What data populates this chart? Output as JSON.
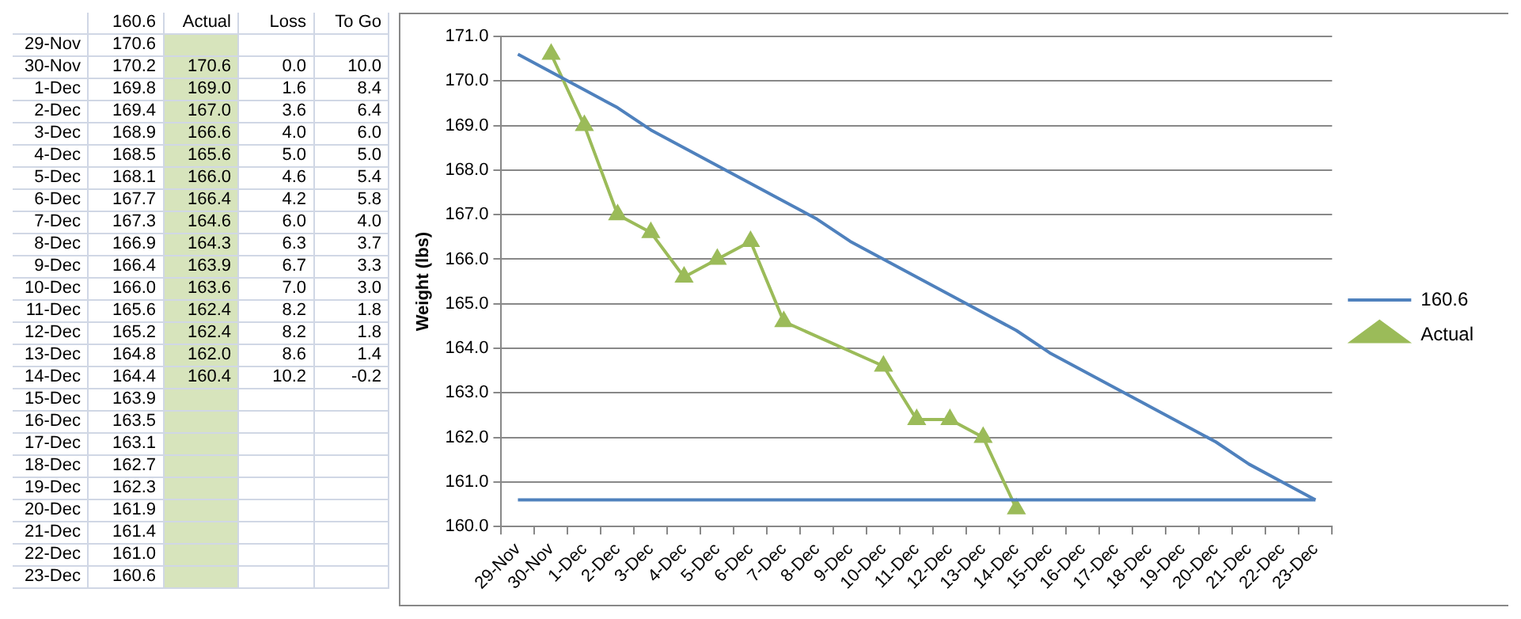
{
  "chart_data": [
    {
      "type": "other",
      "categories": [
        "29-Nov",
        "30-Nov",
        "1-Dec",
        "2-Dec",
        "3-Dec",
        "4-Dec",
        "5-Dec",
        "6-Dec",
        "7-Dec",
        "8-Dec",
        "9-Dec",
        "10-Dec",
        "11-Dec",
        "12-Dec",
        "13-Dec",
        "14-Dec",
        "15-Dec",
        "16-Dec",
        "17-Dec",
        "18-Dec",
        "19-Dec",
        "20-Dec",
        "21-Dec",
        "22-Dec",
        "23-Dec"
      ],
      "series": [
        {
          "name": "160.6",
          "values": [
            170.6,
            170.2,
            169.8,
            169.4,
            168.9,
            168.5,
            168.1,
            167.7,
            167.3,
            166.9,
            166.4,
            166.0,
            165.6,
            165.2,
            164.8,
            164.4,
            163.9,
            163.5,
            163.1,
            162.7,
            162.3,
            161.9,
            161.4,
            161.0,
            160.6
          ],
          "value_labels": [
            "170.6",
            "170.2",
            "169.8",
            "169.4",
            "168.9",
            "168.5",
            "168.1",
            "167.7",
            "167.3",
            "166.9",
            "166.4",
            "166.0",
            "165.6",
            "165.2",
            "164.8",
            "164.4",
            "163.9",
            "163.5",
            "163.1",
            "162.7",
            "162.3",
            "161.9",
            "161.4",
            "161.0",
            "160.6"
          ]
        },
        {
          "name": "Actual",
          "color": "#d7e4bc",
          "values": [
            null,
            170.6,
            169.0,
            167.0,
            166.6,
            165.6,
            166.0,
            166.4,
            164.6,
            164.3,
            163.9,
            163.6,
            162.4,
            162.4,
            162.0,
            160.4,
            null,
            null,
            null,
            null,
            null,
            null,
            null,
            null,
            null
          ],
          "value_labels": [
            null,
            "170.6",
            "169.0",
            "167.0",
            "166.6",
            "165.6",
            "166.0",
            "166.4",
            "164.6",
            "164.3",
            "163.9",
            "163.6",
            "162.4",
            "162.4",
            "162.0",
            "160.4",
            null,
            null,
            null,
            null,
            null,
            null,
            null,
            null,
            null
          ]
        },
        {
          "name": "Loss",
          "values": [
            null,
            0.0,
            1.6,
            3.6,
            4.0,
            5.0,
            4.6,
            4.2,
            6.0,
            6.3,
            6.7,
            7.0,
            8.2,
            8.2,
            8.6,
            10.2,
            null,
            null,
            null,
            null,
            null,
            null,
            null,
            null,
            null
          ],
          "value_labels": [
            null,
            "0.0",
            "1.6",
            "3.6",
            "4.0",
            "5.0",
            "4.6",
            "4.2",
            "6.0",
            "6.3",
            "6.7",
            "7.0",
            "8.2",
            "8.2",
            "8.6",
            "10.2",
            null,
            null,
            null,
            null,
            null,
            null,
            null,
            null,
            null
          ]
        },
        {
          "name": "To Go",
          "values": [
            null,
            10.0,
            8.4,
            6.4,
            6.0,
            5.0,
            5.4,
            5.8,
            4.0,
            3.7,
            3.3,
            3.0,
            1.8,
            1.8,
            1.4,
            -0.2,
            null,
            null,
            null,
            null,
            null,
            null,
            null,
            null,
            null
          ],
          "value_labels": [
            null,
            "10.0",
            "8.4",
            "6.4",
            "6.0",
            "5.0",
            "5.4",
            "5.8",
            "4.0",
            "3.7",
            "3.3",
            "3.0",
            "1.8",
            "1.8",
            "1.4",
            "-0.2",
            null,
            null,
            null,
            null,
            null,
            null,
            null,
            null,
            null
          ]
        }
      ]
    },
    {
      "type": "line",
      "ylabel": "Weight (lbs)",
      "categories": [
        "29-Nov",
        "30-Nov",
        "1-Dec",
        "2-Dec",
        "3-Dec",
        "4-Dec",
        "5-Dec",
        "6-Dec",
        "7-Dec",
        "8-Dec",
        "9-Dec",
        "10-Dec",
        "11-Dec",
        "12-Dec",
        "13-Dec",
        "14-Dec",
        "15-Dec",
        "16-Dec",
        "17-Dec",
        "18-Dec",
        "19-Dec",
        "20-Dec",
        "21-Dec",
        "22-Dec",
        "23-Dec"
      ],
      "series": [
        {
          "name": "160.6",
          "color": "#4f81bd",
          "marker": "none",
          "values": [
            170.6,
            170.2,
            169.8,
            169.4,
            168.9,
            168.5,
            168.1,
            167.7,
            167.3,
            166.9,
            166.4,
            166.0,
            165.6,
            165.2,
            164.8,
            164.4,
            163.9,
            163.5,
            163.1,
            162.7,
            162.3,
            161.9,
            161.4,
            161.0,
            160.6
          ]
        },
        {
          "name": "Actual",
          "color": "#9bbb59",
          "marker": "triangle",
          "values": [
            null,
            170.6,
            169.0,
            167.0,
            166.6,
            165.6,
            166.0,
            166.4,
            164.6,
            null,
            null,
            163.6,
            162.4,
            162.4,
            162.0,
            160.4,
            null,
            null,
            null,
            null,
            null,
            null,
            null,
            null,
            null
          ]
        }
      ],
      "ref_lines": [
        {
          "axis": "y",
          "value": 160.6,
          "color": "#4f81bd"
        }
      ],
      "ylim": [
        160,
        171
      ],
      "yticks": [
        {
          "value": 160,
          "label": "160.0"
        },
        {
          "value": 161,
          "label": "161.0"
        },
        {
          "value": 162,
          "label": "162.0"
        },
        {
          "value": 163,
          "label": "163.0"
        },
        {
          "value": 164,
          "label": "164.0"
        },
        {
          "value": 165,
          "label": "165.0"
        },
        {
          "value": 166,
          "label": "166.0"
        },
        {
          "value": 167,
          "label": "167.0"
        },
        {
          "value": 168,
          "label": "168.0"
        },
        {
          "value": 169,
          "label": "169.0"
        },
        {
          "value": 170,
          "label": "170.0"
        },
        {
          "value": 171,
          "label": "171.0"
        }
      ],
      "grid": "y",
      "legend": "right"
    }
  ]
}
